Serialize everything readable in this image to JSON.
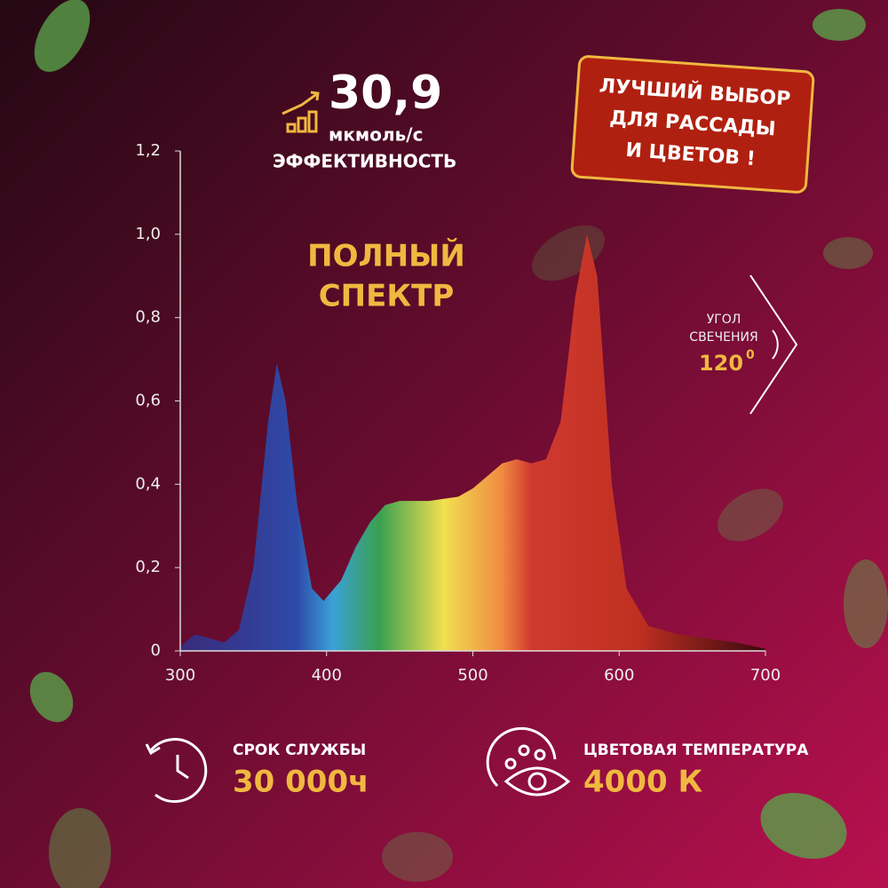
{
  "chart_data": {
    "type": "area",
    "x": [
      300,
      310,
      320,
      330,
      340,
      350,
      360,
      366,
      372,
      380,
      390,
      398,
      410,
      420,
      430,
      440,
      450,
      470,
      480,
      490,
      500,
      510,
      520,
      530,
      540,
      550,
      560,
      570,
      578,
      585,
      595,
      605,
      620,
      640,
      660,
      680,
      700
    ],
    "values": [
      0.01,
      0.04,
      0.03,
      0.02,
      0.05,
      0.2,
      0.55,
      0.69,
      0.6,
      0.35,
      0.15,
      0.12,
      0.17,
      0.25,
      0.31,
      0.35,
      0.36,
      0.36,
      0.365,
      0.37,
      0.39,
      0.42,
      0.45,
      0.46,
      0.45,
      0.46,
      0.55,
      0.85,
      1.0,
      0.9,
      0.4,
      0.15,
      0.06,
      0.04,
      0.03,
      0.02,
      0.005
    ],
    "xlim": [
      300,
      700
    ],
    "xticks": [
      300,
      400,
      500,
      600,
      700
    ],
    "ylim": [
      0,
      1.2
    ],
    "yticks": [
      0,
      {
        "value": 0.2,
        "label": "0,2"
      },
      {
        "value": 0.4,
        "label": "0,4"
      },
      {
        "value": 0.6,
        "label": "0,6"
      },
      {
        "value": 0.8,
        "label": "0,8"
      },
      {
        "value": 1.0,
        "label": "1,0"
      },
      {
        "value": 1.2,
        "label": "1,2"
      }
    ],
    "annotation": [
      "ПОЛНЫЙ",
      "СПЕКТР"
    ]
  },
  "efficiency": {
    "value": "30,9",
    "unit": "мкмоль/с",
    "label": "ЭФФЕКТИВНОСТЬ"
  },
  "badge": [
    "ЛУЧШИЙ ВЫБОР",
    "ДЛЯ РАССАДЫ",
    "И ЦВЕТОВ !"
  ],
  "angle": {
    "label": [
      "УГОЛ",
      "СВЕЧЕНИЯ"
    ],
    "value": "120",
    "unit": "0"
  },
  "lifetime": {
    "label": "СРОК СЛУЖБЫ",
    "value": "30 000ч"
  },
  "color_temp": {
    "label": "ЦВЕТОВАЯ ТЕМПЕРАТУРА",
    "value": "4000 К"
  }
}
